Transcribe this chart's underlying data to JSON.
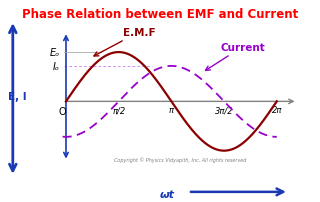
{
  "title": "Phase Relation between EMF and Current",
  "title_color": "red",
  "title_fontsize": 8.5,
  "bg_color": "#ffffff",
  "emf_color": "#8B0000",
  "current_color": "#9900cc",
  "axis_color": "#1a3ab5",
  "emf_label": "E.M.F",
  "current_label": "Current",
  "Eo_label": "Eₒ",
  "Io_label": "Iₒ",
  "O_label": "O",
  "EI_label": "E, I",
  "wt_label": "ωt",
  "copyright": "Copyright © Physics Vidyapith, Inc. All rights reserved",
  "amplitude_emf": 1.0,
  "amplitude_current": 0.72,
  "phase_shift": 1.5707963267948966,
  "x_ticks": [
    1.5707963267948966,
    3.141592653589793,
    4.71238898038469,
    6.283185307179586
  ],
  "x_tick_labels": [
    "π/2",
    "π",
    "3π/2",
    "2π"
  ]
}
